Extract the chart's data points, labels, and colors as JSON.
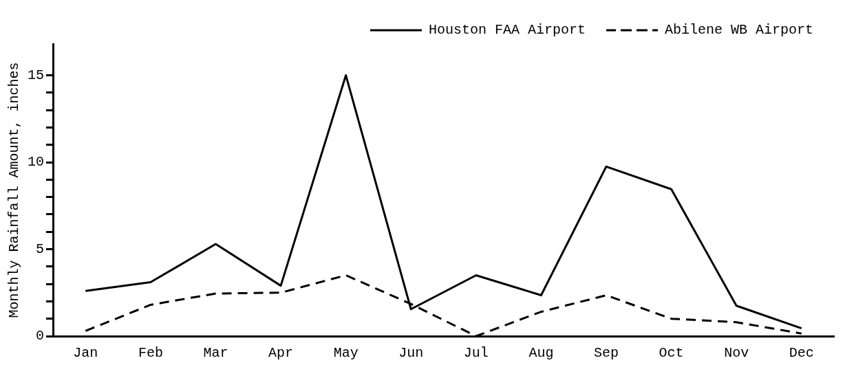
{
  "chart_data": {
    "type": "line",
    "ylabel": "Monthly Rainfall Amount, inches",
    "categories": [
      "Jan",
      "Feb",
      "Mar",
      "Apr",
      "May",
      "Jun",
      "Jul",
      "Aug",
      "Sep",
      "Oct",
      "Nov",
      "Dec"
    ],
    "series": [
      {
        "name": "Houston FAA Airport",
        "color": "#000000",
        "line_style": "solid",
        "values": [
          2.6,
          3.1,
          5.3,
          2.9,
          15.0,
          1.55,
          3.5,
          2.35,
          9.75,
          8.45,
          1.75,
          0.45
        ]
      },
      {
        "name": "Abilene WB Airport",
        "color": "#000000",
        "line_style": "dashed",
        "values": [
          0.3,
          1.8,
          2.45,
          2.5,
          3.5,
          1.85,
          0,
          1.4,
          2.35,
          1.0,
          0.8,
          0.15
        ]
      }
    ],
    "ylim": [
      0,
      16.8
    ],
    "yticks": [
      0,
      {
        "value": 1,
        "label": null
      },
      {
        "value": 2,
        "label": null
      },
      {
        "value": 3,
        "label": null
      },
      {
        "value": 4,
        "label": null
      },
      5,
      {
        "value": 6,
        "label": null
      },
      {
        "value": 7,
        "label": null
      },
      {
        "value": 8,
        "label": null
      },
      {
        "value": 9,
        "label": null
      },
      10,
      {
        "value": 11,
        "label": null
      },
      {
        "value": 12,
        "label": null
      },
      {
        "value": 13,
        "label": null
      },
      {
        "value": 14,
        "label": null
      },
      15
    ],
    "grid": false,
    "legend": "top right",
    "marker": "none"
  }
}
